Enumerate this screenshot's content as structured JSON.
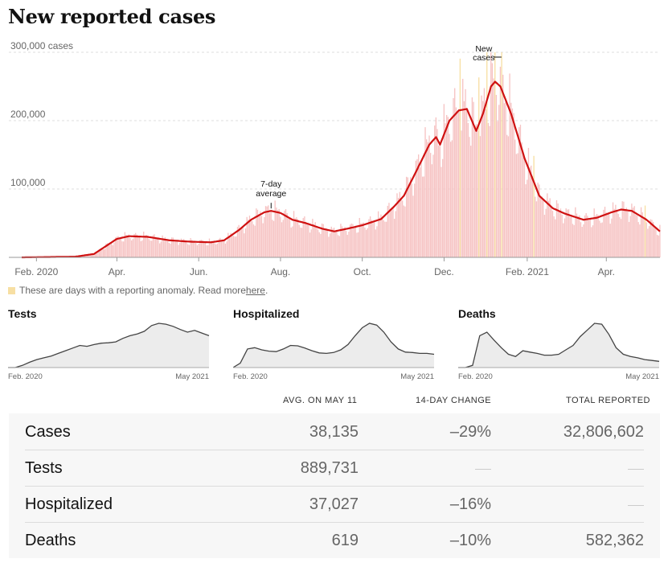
{
  "title": "New reported cases",
  "chart_data": {
    "type": "bar",
    "title": "New reported cases",
    "y_unit_label": "300,000 cases",
    "yticks": [
      100000,
      200000,
      300000
    ],
    "ytick_labels": [
      "100,000",
      "200,000",
      "300,000 cases"
    ],
    "ylim": [
      0,
      300000
    ],
    "xlim": [
      "2020-01-21",
      "2021-05-11"
    ],
    "xticks": [
      {
        "date": "2020-02-01",
        "label": "Feb. 2020"
      },
      {
        "date": "2020-04-01",
        "label": "Apr."
      },
      {
        "date": "2020-06-01",
        "label": "Jun."
      },
      {
        "date": "2020-08-01",
        "label": "Aug."
      },
      {
        "date": "2020-10-01",
        "label": "Oct."
      },
      {
        "date": "2020-12-01",
        "label": "Dec."
      },
      {
        "date": "2021-02-01",
        "label": "Feb. 2021"
      },
      {
        "date": "2021-04-01",
        "label": "Apr."
      }
    ],
    "grid": true,
    "series": [
      {
        "name": "7-day average",
        "type": "line",
        "color": "#cf1111",
        "x": [
          "2020-01-21",
          "2020-03-01",
          "2020-03-15",
          "2020-03-25",
          "2020-04-01",
          "2020-04-10",
          "2020-04-24",
          "2020-05-10",
          "2020-05-25",
          "2020-06-10",
          "2020-06-20",
          "2020-07-01",
          "2020-07-10",
          "2020-07-20",
          "2020-07-25",
          "2020-08-01",
          "2020-08-10",
          "2020-08-20",
          "2020-09-01",
          "2020-09-10",
          "2020-09-20",
          "2020-10-01",
          "2020-10-15",
          "2020-10-25",
          "2020-11-01",
          "2020-11-10",
          "2020-11-20",
          "2020-11-25",
          "2020-11-28",
          "2020-12-05",
          "2020-12-12",
          "2020-12-18",
          "2020-12-25",
          "2020-12-30",
          "2021-01-05",
          "2021-01-08",
          "2021-01-12",
          "2021-01-20",
          "2021-01-30",
          "2021-02-10",
          "2021-02-20",
          "2021-03-01",
          "2021-03-15",
          "2021-03-25",
          "2021-04-05",
          "2021-04-12",
          "2021-04-20",
          "2021-05-01",
          "2021-05-11"
        ],
        "values": [
          0,
          1000,
          5000,
          18000,
          27000,
          31000,
          30000,
          25000,
          23000,
          22000,
          25000,
          40000,
          55000,
          66000,
          68000,
          65000,
          55000,
          50000,
          42000,
          38000,
          42000,
          47000,
          56000,
          75000,
          90000,
          125000,
          165000,
          176000,
          165000,
          200000,
          215000,
          217000,
          185000,
          210000,
          250000,
          257000,
          250000,
          210000,
          145000,
          90000,
          72000,
          64000,
          55000,
          58000,
          66000,
          70000,
          68000,
          55000,
          38000
        ]
      },
      {
        "name": "New cases",
        "type": "bar",
        "color": "#f6c3c3",
        "anomaly_color": "#f7dfa3",
        "anomaly_dates": [
          "2020-12-13",
          "2020-12-27",
          "2021-01-02",
          "2021-01-08",
          "2021-01-13",
          "2021-02-06",
          "2021-04-30"
        ],
        "note": "Daily bars fluctuate around the 7-day average with a weekly cycle; peak single day ~300,000 in early January 2021."
      }
    ],
    "annotations": [
      {
        "text": [
          "7-day",
          "average"
        ],
        "date": "2020-07-25"
      },
      {
        "text": [
          "New",
          "cases"
        ],
        "date": "2021-01-08"
      }
    ]
  },
  "legend_note": {
    "text": "These are days with a reporting anomaly. Read more ",
    "link": "here",
    "end": "."
  },
  "small_charts": [
    {
      "title": "Tests",
      "start": "Feb. 2020",
      "end": "May 2021",
      "values": [
        0,
        0,
        0.05,
        0.12,
        0.18,
        0.22,
        0.26,
        0.32,
        0.38,
        0.44,
        0.5,
        0.48,
        0.52,
        0.55,
        0.56,
        0.58,
        0.66,
        0.72,
        0.76,
        0.82,
        0.95,
        1.0,
        0.98,
        0.93,
        0.86,
        0.8,
        0.84,
        0.78,
        0.72
      ]
    },
    {
      "title": "Hospitalized",
      "start": "Feb. 2020",
      "end": "May 2021",
      "values": [
        0,
        0.1,
        0.42,
        0.45,
        0.4,
        0.37,
        0.36,
        0.42,
        0.5,
        0.49,
        0.44,
        0.38,
        0.33,
        0.32,
        0.34,
        0.4,
        0.52,
        0.72,
        0.9,
        1.0,
        0.96,
        0.8,
        0.58,
        0.42,
        0.35,
        0.34,
        0.32,
        0.32,
        0.3
      ]
    },
    {
      "title": "Deaths",
      "start": "Feb. 2020",
      "end": "May 2021",
      "values": [
        0,
        0,
        0.05,
        0.72,
        0.8,
        0.62,
        0.45,
        0.3,
        0.25,
        0.38,
        0.35,
        0.32,
        0.28,
        0.28,
        0.3,
        0.4,
        0.5,
        0.7,
        0.85,
        1.0,
        0.98,
        0.75,
        0.45,
        0.3,
        0.25,
        0.22,
        0.18,
        0.16,
        0.14
      ]
    }
  ],
  "table": {
    "headers": [
      "AVG. ON MAY 11",
      "14-DAY CHANGE",
      "TOTAL REPORTED"
    ],
    "rows": [
      {
        "label": "Cases",
        "avg": "38,135",
        "change": "–29%",
        "total": "32,806,602"
      },
      {
        "label": "Tests",
        "avg": "889,731",
        "change": "",
        "total": ""
      },
      {
        "label": "Hospitalized",
        "avg": "37,027",
        "change": "–16%",
        "total": ""
      },
      {
        "label": "Deaths",
        "avg": "619",
        "change": "–10%",
        "total": "582,362"
      }
    ]
  }
}
